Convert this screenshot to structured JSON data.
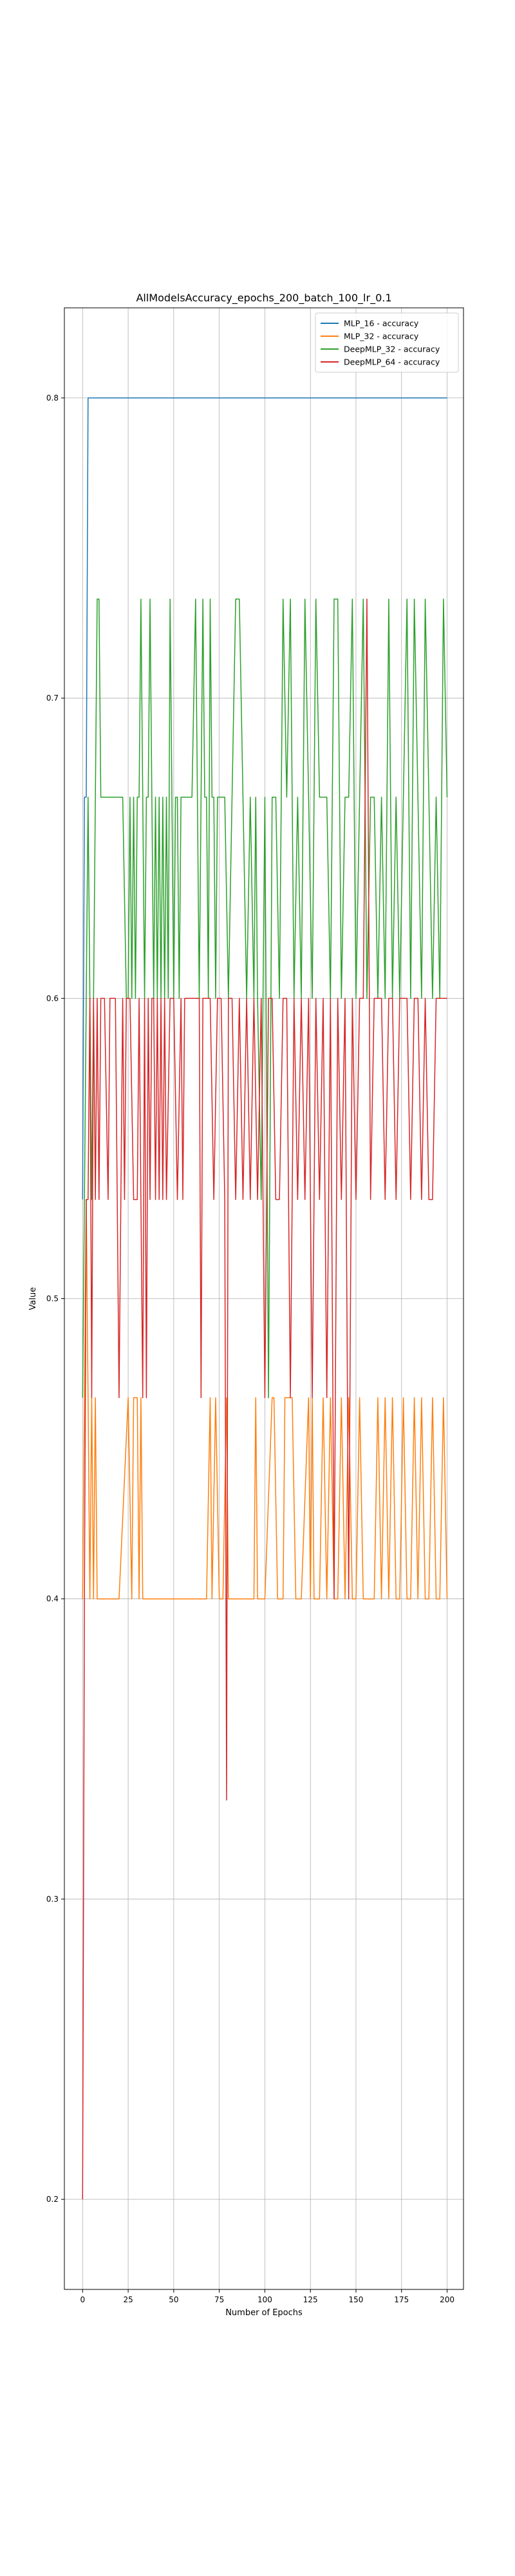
{
  "chart_data": {
    "type": "line",
    "title": "AllModelsAccuracy_epochs_200_batch_100_lr_0.1",
    "xlabel": "Number of Epochs",
    "ylabel": "Value",
    "xlim": [
      -10,
      209
    ],
    "ylim": [
      0.17,
      0.83
    ],
    "xticks": [
      0,
      25,
      50,
      75,
      100,
      125,
      150,
      175,
      200
    ],
    "yticks": [
      0.2,
      0.3,
      0.4,
      0.5,
      0.6,
      0.7,
      0.8
    ],
    "grid": true,
    "legend_position": "top-right",
    "series": [
      {
        "name": "MLP_16 - accuracy",
        "color": "#1f77b4",
        "x": [
          0,
          1,
          2,
          3,
          4,
          200
        ],
        "y": [
          0.533,
          0.667,
          0.667,
          0.8,
          0.8,
          0.8
        ]
      },
      {
        "name": "MLP_32 - accuracy",
        "color": "#ff7f0e",
        "x": [
          0,
          1,
          2,
          3,
          4,
          5,
          6,
          7,
          8,
          10,
          20,
          25,
          27,
          28,
          30,
          31,
          32,
          33,
          35,
          40,
          60,
          68,
          70,
          71,
          73,
          75,
          77,
          79,
          80,
          81,
          83,
          90,
          94,
          95,
          96,
          100,
          104,
          105,
          107,
          110,
          111,
          115,
          117,
          118,
          120,
          124,
          125,
          126,
          127,
          128,
          130,
          132,
          134,
          136,
          138,
          140,
          142,
          144,
          146,
          148,
          150,
          152,
          154,
          156,
          158,
          160,
          162,
          164,
          166,
          168,
          170,
          172,
          174,
          176,
          178,
          180,
          182,
          184,
          186,
          188,
          190,
          192,
          194,
          196,
          198,
          200
        ],
        "y": [
          0.4,
          0.467,
          0.533,
          0.467,
          0.4,
          0.467,
          0.4,
          0.467,
          0.4,
          0.4,
          0.4,
          0.467,
          0.4,
          0.467,
          0.467,
          0.4,
          0.467,
          0.4,
          0.4,
          0.4,
          0.4,
          0.4,
          0.467,
          0.4,
          0.467,
          0.4,
          0.4,
          0.467,
          0.4,
          0.4,
          0.4,
          0.4,
          0.4,
          0.467,
          0.4,
          0.4,
          0.467,
          0.467,
          0.4,
          0.4,
          0.467,
          0.467,
          0.4,
          0.4,
          0.4,
          0.467,
          0.4,
          0.467,
          0.4,
          0.4,
          0.4,
          0.467,
          0.4,
          0.467,
          0.4,
          0.4,
          0.467,
          0.4,
          0.467,
          0.4,
          0.4,
          0.467,
          0.4,
          0.4,
          0.4,
          0.4,
          0.467,
          0.4,
          0.467,
          0.4,
          0.467,
          0.4,
          0.4,
          0.467,
          0.4,
          0.4,
          0.467,
          0.4,
          0.467,
          0.4,
          0.4,
          0.467,
          0.4,
          0.4,
          0.467,
          0.4
        ]
      },
      {
        "name": "DeepMLP_32 - accuracy",
        "color": "#2ca02c",
        "x": [
          0,
          1,
          2,
          3,
          4,
          5,
          6,
          7,
          8,
          9,
          10,
          11,
          12,
          14,
          16,
          18,
          20,
          22,
          24,
          25,
          26,
          27,
          28,
          29,
          30,
          31,
          32,
          33,
          34,
          35,
          36,
          37,
          38,
          39,
          40,
          41,
          42,
          43,
          44,
          45,
          46,
          47,
          48,
          49,
          50,
          51,
          52,
          53,
          54,
          55,
          56,
          58,
          60,
          62,
          64,
          65,
          66,
          67,
          68,
          69,
          70,
          71,
          72,
          73,
          74,
          75,
          76,
          78,
          80,
          82,
          84,
          86,
          88,
          90,
          92,
          94,
          95,
          96,
          98,
          100,
          102,
          104,
          106,
          108,
          110,
          112,
          114,
          116,
          118,
          120,
          122,
          124,
          126,
          128,
          130,
          132,
          134,
          136,
          138,
          140,
          142,
          144,
          146,
          148,
          150,
          152,
          154,
          156,
          158,
          160,
          162,
          164,
          166,
          168,
          170,
          172,
          174,
          176,
          178,
          180,
          182,
          184,
          186,
          188,
          190,
          192,
          194,
          196,
          198,
          200
        ],
        "y": [
          0.467,
          0.533,
          0.6,
          0.667,
          0.6,
          0.533,
          0.6,
          0.667,
          0.733,
          0.733,
          0.667,
          0.667,
          0.667,
          0.667,
          0.667,
          0.667,
          0.667,
          0.667,
          0.6,
          0.6,
          0.667,
          0.6,
          0.667,
          0.6,
          0.667,
          0.667,
          0.733,
          0.667,
          0.6,
          0.667,
          0.667,
          0.733,
          0.667,
          0.6,
          0.667,
          0.6,
          0.667,
          0.6,
          0.667,
          0.6,
          0.667,
          0.6,
          0.733,
          0.667,
          0.6,
          0.667,
          0.667,
          0.6,
          0.667,
          0.667,
          0.667,
          0.667,
          0.667,
          0.733,
          0.6,
          0.667,
          0.733,
          0.667,
          0.667,
          0.6,
          0.733,
          0.667,
          0.667,
          0.6,
          0.667,
          0.667,
          0.667,
          0.667,
          0.6,
          0.667,
          0.733,
          0.733,
          0.667,
          0.6,
          0.667,
          0.6,
          0.667,
          0.6,
          0.533,
          0.667,
          0.467,
          0.667,
          0.667,
          0.6,
          0.733,
          0.667,
          0.733,
          0.6,
          0.667,
          0.6,
          0.733,
          0.667,
          0.6,
          0.733,
          0.667,
          0.667,
          0.667,
          0.6,
          0.733,
          0.733,
          0.6,
          0.667,
          0.667,
          0.733,
          0.6,
          0.667,
          0.733,
          0.6,
          0.667,
          0.667,
          0.6,
          0.667,
          0.6,
          0.733,
          0.6,
          0.667,
          0.6,
          0.667,
          0.733,
          0.6,
          0.733,
          0.667,
          0.6,
          0.733,
          0.667,
          0.6,
          0.667,
          0.6,
          0.733,
          0.667
        ]
      },
      {
        "name": "DeepMLP_64 - accuracy",
        "color": "#d62728",
        "x": [
          0,
          1,
          2,
          3,
          4,
          5,
          6,
          7,
          8,
          9,
          10,
          11,
          12,
          14,
          15,
          16,
          18,
          20,
          22,
          23,
          24,
          25,
          26,
          28,
          30,
          31,
          32,
          33,
          34,
          35,
          36,
          37,
          38,
          39,
          40,
          41,
          42,
          43,
          44,
          45,
          46,
          48,
          50,
          52,
          54,
          55,
          56,
          58,
          60,
          62,
          64,
          65,
          66,
          68,
          70,
          72,
          74,
          76,
          78,
          79,
          80,
          82,
          84,
          86,
          88,
          90,
          92,
          94,
          96,
          98,
          100,
          102,
          104,
          106,
          108,
          110,
          112,
          114,
          116,
          118,
          120,
          122,
          124,
          126,
          128,
          130,
          132,
          134,
          136,
          138,
          140,
          142,
          144,
          146,
          148,
          150,
          152,
          154,
          156,
          158,
          160,
          162,
          164,
          166,
          168,
          170,
          172,
          174,
          176,
          178,
          180,
          182,
          184,
          186,
          188,
          190,
          192,
          194,
          196,
          198,
          200
        ],
        "y": [
          0.2,
          0.4,
          0.533,
          0.533,
          0.6,
          0.467,
          0.6,
          0.533,
          0.6,
          0.533,
          0.6,
          0.6,
          0.6,
          0.533,
          0.6,
          0.6,
          0.6,
          0.467,
          0.6,
          0.533,
          0.6,
          0.6,
          0.6,
          0.533,
          0.533,
          0.6,
          0.533,
          0.467,
          0.6,
          0.467,
          0.6,
          0.533,
          0.6,
          0.6,
          0.533,
          0.6,
          0.533,
          0.6,
          0.533,
          0.6,
          0.533,
          0.6,
          0.6,
          0.533,
          0.6,
          0.533,
          0.6,
          0.6,
          0.6,
          0.6,
          0.6,
          0.467,
          0.6,
          0.6,
          0.6,
          0.533,
          0.6,
          0.6,
          0.533,
          0.333,
          0.6,
          0.6,
          0.533,
          0.6,
          0.533,
          0.6,
          0.533,
          0.6,
          0.533,
          0.6,
          0.467,
          0.6,
          0.6,
          0.533,
          0.533,
          0.6,
          0.6,
          0.467,
          0.6,
          0.533,
          0.6,
          0.533,
          0.6,
          0.467,
          0.6,
          0.533,
          0.6,
          0.467,
          0.6,
          0.4,
          0.6,
          0.533,
          0.6,
          0.4,
          0.6,
          0.533,
          0.6,
          0.6,
          0.733,
          0.533,
          0.6,
          0.6,
          0.6,
          0.533,
          0.6,
          0.6,
          0.533,
          0.6,
          0.6,
          0.6,
          0.533,
          0.6,
          0.6,
          0.533,
          0.6,
          0.533,
          0.533,
          0.6,
          0.6,
          0.6,
          0.6
        ]
      }
    ]
  }
}
